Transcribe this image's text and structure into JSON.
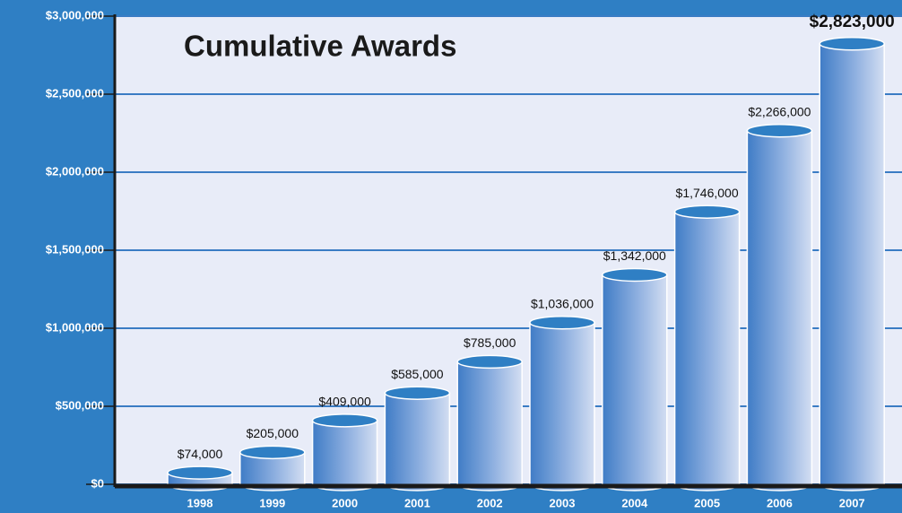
{
  "chart_data": {
    "type": "bar",
    "title": "Cumulative Awards",
    "categories": [
      "1998",
      "1999",
      "2000",
      "2001",
      "2002",
      "2003",
      "2004",
      "2005",
      "2006",
      "2007"
    ],
    "values": [
      74000,
      205000,
      409000,
      585000,
      785000,
      1036000,
      1342000,
      1746000,
      2266000,
      2823000
    ],
    "value_labels": [
      "$74,000",
      "$205,000",
      "$409,000",
      "$585,000",
      "$785,000",
      "$1,036,000",
      "$1,342,000",
      "$1,746,000",
      "$2,266,000",
      "$2,823,000"
    ],
    "color": "#2f7fc4",
    "ylim": [
      0,
      3000000
    ],
    "yticks": [
      {
        "value": 0,
        "label": "$0"
      },
      {
        "value": 500000,
        "label": "$500,000"
      },
      {
        "value": 1000000,
        "label": "$1,000,000"
      },
      {
        "value": 1500000,
        "label": "$1,500,000"
      },
      {
        "value": 2000000,
        "label": "$2,000,000"
      },
      {
        "value": 2500000,
        "label": "$2,500,000"
      },
      {
        "value": 3000000,
        "label": "$3,000,000"
      }
    ],
    "grid": true
  }
}
